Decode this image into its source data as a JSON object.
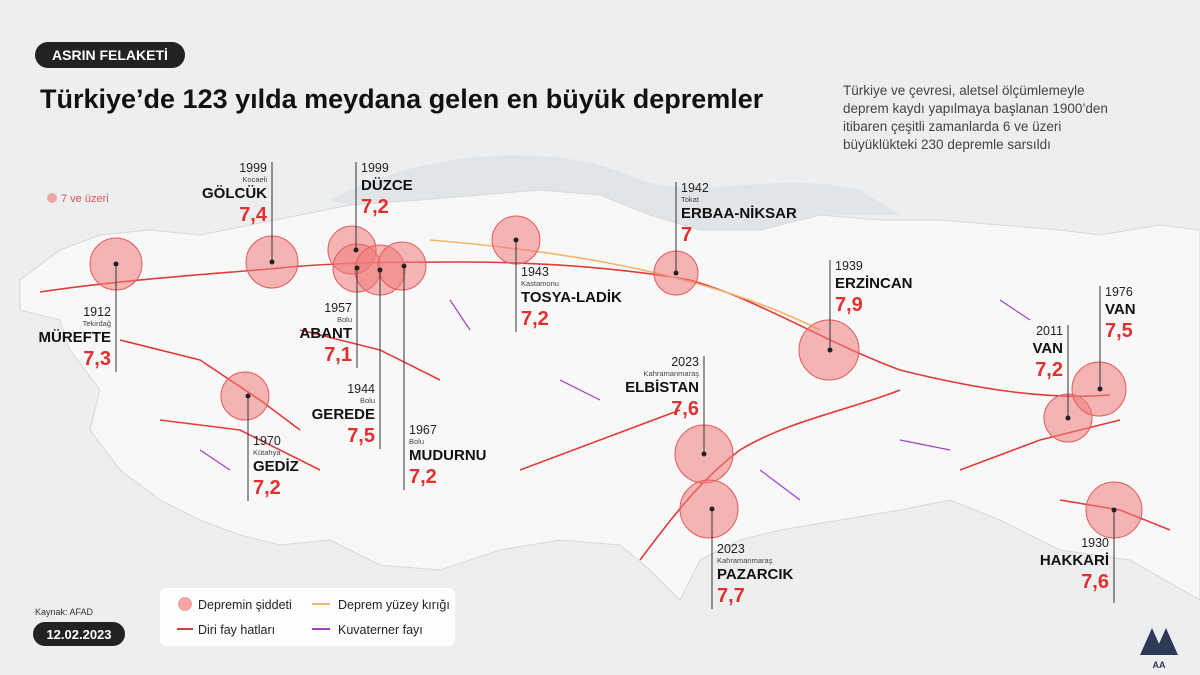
{
  "badge": "ASRIN FELAKETİ",
  "title": "Türkiye’de 123 yılda meydana gelen en büyük depremler",
  "description": "Türkiye ve çevresi, aletsel ölçümlemeyle deprem kaydı yapılmaya başlanan 1900’den itibaren çeşitli zamanlarda 6 ve üzeri büyüklükteki 230 depremle sarsıldı",
  "map_legend": "7 ve üzeri",
  "earthquakes": [
    {
      "year": 1999,
      "province": "Kocaeli",
      "name": "GÖLCÜK",
      "magnitude": "7,4"
    },
    {
      "year": 1999,
      "name": "DÜZCE",
      "magnitude": "7,2"
    },
    {
      "year": 1957,
      "province": "Bolu",
      "name": "ABANT",
      "magnitude": "7,1"
    },
    {
      "year": 1944,
      "province": "Bolu",
      "name": "GEREDE",
      "magnitude": "7,5"
    },
    {
      "year": 1967,
      "province": "Bolu",
      "name": "MUDURNU",
      "magnitude": "7,2"
    },
    {
      "year": 1912,
      "province": "Tekirdağ",
      "name": "MÜREFTE",
      "magnitude": "7,3"
    },
    {
      "year": 1970,
      "province": "Kütahya",
      "name": "GEDİZ",
      "magnitude": "7,2"
    },
    {
      "year": 1943,
      "province": "Kastamonu",
      "name": "TOSYA-LADİK",
      "magnitude": "7,2"
    },
    {
      "year": 1942,
      "province": "Tokat",
      "name": "ERBAA-NİKSAR",
      "magnitude": "7"
    },
    {
      "year": 1939,
      "name": "ERZİNCAN",
      "magnitude": "7,9"
    },
    {
      "year": 2023,
      "province": "Kahramanmaraş",
      "name": "ELBİSTAN",
      "magnitude": "7,6"
    },
    {
      "year": 2023,
      "province": "Kahramanmaraş",
      "name": "PAZARCIK",
      "magnitude": "7,7"
    },
    {
      "year": 2011,
      "name": "VAN",
      "magnitude": "7,2"
    },
    {
      "year": 1976,
      "name": "VAN",
      "magnitude": "7,5"
    },
    {
      "year": 1930,
      "name": "HAKKARİ",
      "magnitude": "7,6"
    }
  ],
  "legend": [
    "Depremin şiddeti",
    "Deprem yüzey kırığı",
    "Diri fay hatları",
    "Kuvaterner fayı"
  ],
  "source": "Kaynak: AFAD",
  "date": "12.02.2023",
  "logo": "AA"
}
